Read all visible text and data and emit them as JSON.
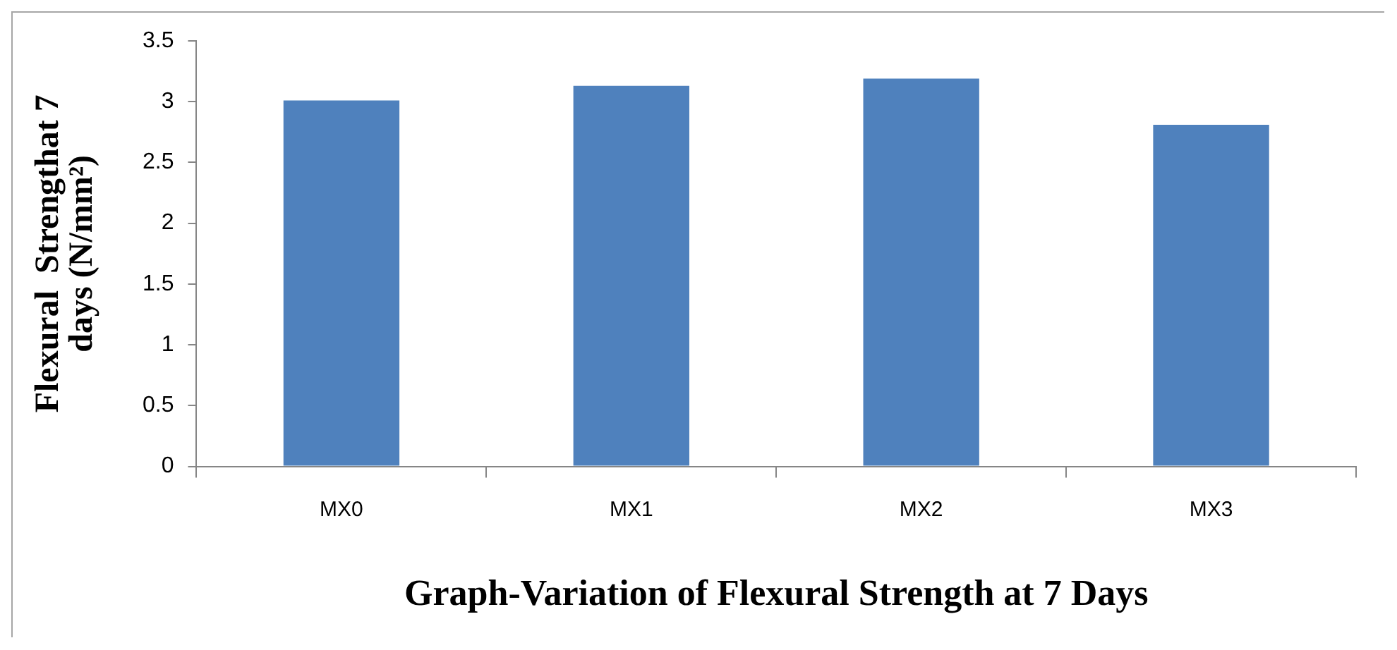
{
  "chart_data": {
    "type": "bar",
    "xlabel": "Graph-Variation of Flexural Strength at 7 Days",
    "ylabel": "Flexural  Strengthat 7 days (N/mm²)",
    "categories": [
      "MX0",
      "MX1",
      "MX2",
      "MX3"
    ],
    "values": [
      3.01,
      3.13,
      3.19,
      2.81
    ],
    "color": "#4f81bd",
    "ylim": [
      0,
      3.5
    ],
    "yticks": [
      0,
      0.5,
      1,
      1.5,
      2,
      2.5,
      3,
      3.5
    ],
    "legend": false
  }
}
